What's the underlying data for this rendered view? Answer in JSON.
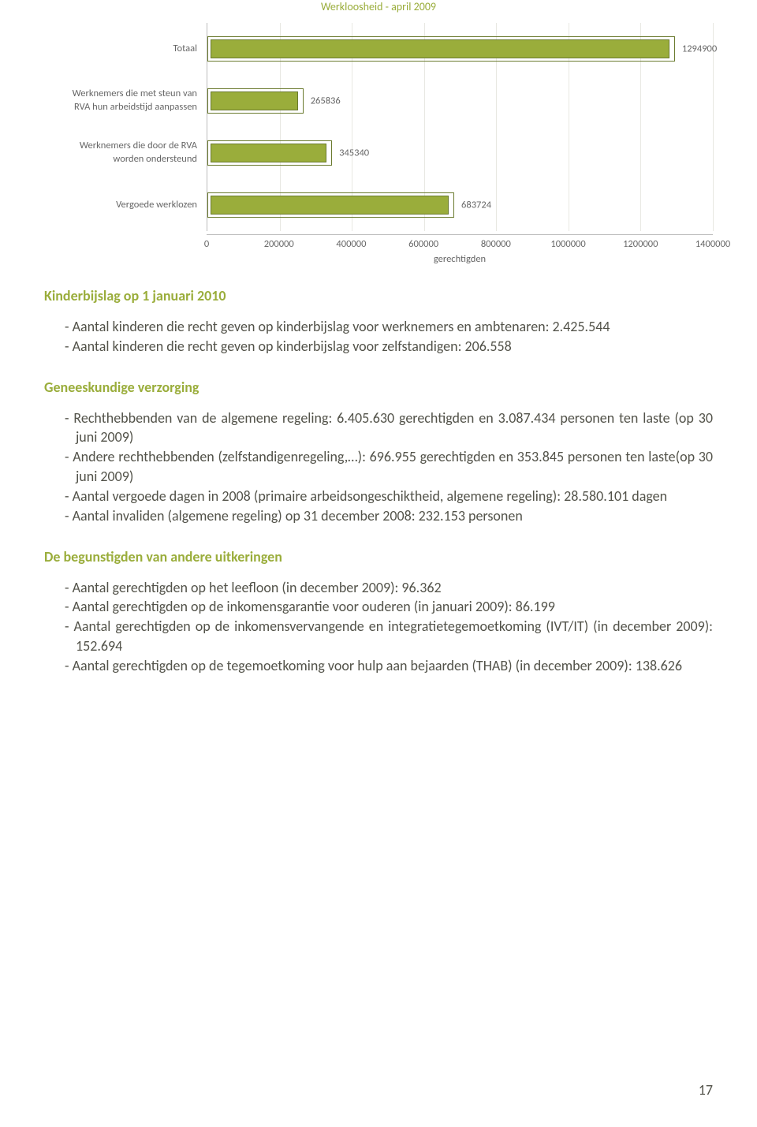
{
  "chart": {
    "type": "bar-horizontal",
    "title": "Werkloosheid - april 2009",
    "title_color": "#9aad3b",
    "background_color": "#ffffff",
    "gridline_color": "#e8e8e2",
    "axis_line_color": "#bdbdbd",
    "tick_font_color": "#666666",
    "cat_label_color": "#666666",
    "x_axis_title": "gerechtigden",
    "xlim_min": 0,
    "xlim_max": 1400000,
    "xtick_step": 200000,
    "xticks": [
      "0",
      "200000",
      "400000",
      "600000",
      "800000",
      "1000000",
      "1200000",
      "1400000"
    ],
    "bar_fill_color": "#9aad3b",
    "bar_border_color": "#6a7a2e",
    "categories": [
      {
        "label_line1": "Totaal",
        "label_line2": "",
        "value": 1294900,
        "value_label": "1294900"
      },
      {
        "label_line1": "Werknemers die met steun van",
        "label_line2": "RVA hun arbeidstijd aanpassen",
        "value": 265836,
        "value_label": "265836"
      },
      {
        "label_line1": "Werknemers die door de RVA",
        "label_line2": "worden ondersteund",
        "value": 345340,
        "value_label": "345340"
      },
      {
        "label_line1": "Vergoede werklozen",
        "label_line2": "",
        "value": 683724,
        "value_label": "683724"
      }
    ]
  },
  "sections": {
    "kinderbijslag": {
      "heading": "Kinderbijslag op 1 januari 2010",
      "heading_color": "#9aad3b",
      "items": [
        "Aantal kinderen die recht geven op kinderbijslag voor werknemers en ambtenaren: 2.425.544",
        "Aantal kinderen die recht geven op kinderbijslag voor zelfstandigen: 206.558"
      ]
    },
    "geneeskundige": {
      "heading": "Geneeskundige verzorging",
      "heading_color": "#9aad3b",
      "items": [
        "Rechthebbenden van de algemene regeling: 6.405.630 gerechtigden en 3.087.434 personen ten laste (op 30 juni 2009)",
        "Andere rechthebbenden (zelfstandigenregeling,…): 696.955 gerechtigden en 353.845 personen ten laste(op 30 juni 2009)",
        "Aantal vergoede dagen in 2008 (primaire arbeidsongeschiktheid, algemene regeling): 28.580.101 dagen",
        "Aantal invaliden (algemene regeling) op 31 december 2008: 232.153 personen"
      ]
    },
    "begunstigden": {
      "heading": "De begunstigden van andere uitkeringen",
      "heading_color": "#9aad3b",
      "items": [
        "Aantal gerechtigden op het leefloon (in december 2009): 96.362",
        "Aantal gerechtigden op de inkomensgarantie voor ouderen (in januari 2009): 86.199",
        "Aantal gerechtigden op de inkomensvervangende en integratietegemoetkoming (IVT/IT) (in december 2009): 152.694",
        "Aantal gerechtigden op de tegemoetkoming voor hulp aan bejaarden (THAB) (in december 2009): 138.626"
      ]
    }
  },
  "page_number": "17"
}
